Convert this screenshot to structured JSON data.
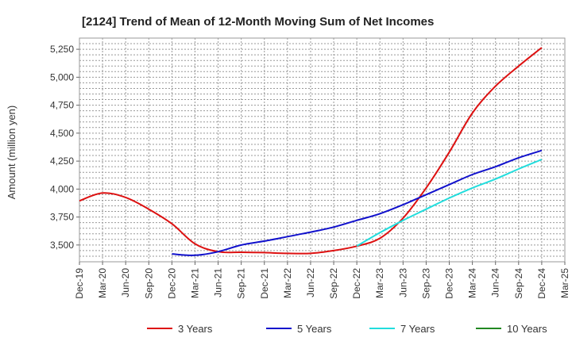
{
  "chart_data": {
    "type": "line",
    "title": "[2124]  Trend of Mean of 12-Month Moving Sum of Net Incomes",
    "xlabel": "",
    "ylabel": "Amount (million yen)",
    "ylim": [
      3350,
      5350
    ],
    "yticks": [
      3500,
      3750,
      4000,
      4250,
      4500,
      4750,
      5000,
      5250
    ],
    "ytick_labels": [
      "3,500",
      "3,750",
      "4,000",
      "4,250",
      "4,500",
      "4,750",
      "5,000",
      "5,250"
    ],
    "categories": [
      "Dec-19",
      "Mar-20",
      "Jun-20",
      "Sep-20",
      "Dec-20",
      "Mar-21",
      "Jun-21",
      "Sep-21",
      "Dec-21",
      "Mar-22",
      "Jun-22",
      "Sep-22",
      "Dec-22",
      "Mar-23",
      "Jun-23",
      "Sep-23",
      "Dec-23",
      "Mar-24",
      "Jun-24",
      "Sep-24",
      "Dec-24",
      "Mar-25"
    ],
    "grid": true,
    "legend_position": "bottom",
    "series": [
      {
        "name": "3 Years",
        "color": "#dd1111",
        "values": [
          3895,
          3965,
          3925,
          3820,
          3690,
          3510,
          3440,
          3435,
          3432,
          3425,
          3425,
          3450,
          3490,
          3560,
          3740,
          4010,
          4330,
          4680,
          4920,
          5100,
          5265,
          null
        ]
      },
      {
        "name": "5 Years",
        "color": "#1111cc",
        "values": [
          null,
          null,
          null,
          null,
          3420,
          3408,
          3440,
          3500,
          3535,
          3575,
          3615,
          3660,
          3720,
          3780,
          3860,
          3950,
          4040,
          4130,
          4200,
          4280,
          4345,
          null
        ]
      },
      {
        "name": "7 Years",
        "color": "#22dddd",
        "values": [
          null,
          null,
          null,
          null,
          null,
          null,
          null,
          null,
          null,
          null,
          null,
          null,
          3490,
          3610,
          3720,
          3820,
          3920,
          4010,
          4090,
          4180,
          4265,
          null
        ]
      },
      {
        "name": "10 Years",
        "color": "#228822",
        "values": [
          null,
          null,
          null,
          null,
          null,
          null,
          null,
          null,
          null,
          null,
          null,
          null,
          null,
          null,
          null,
          null,
          null,
          null,
          null,
          null,
          null,
          null
        ]
      }
    ]
  }
}
